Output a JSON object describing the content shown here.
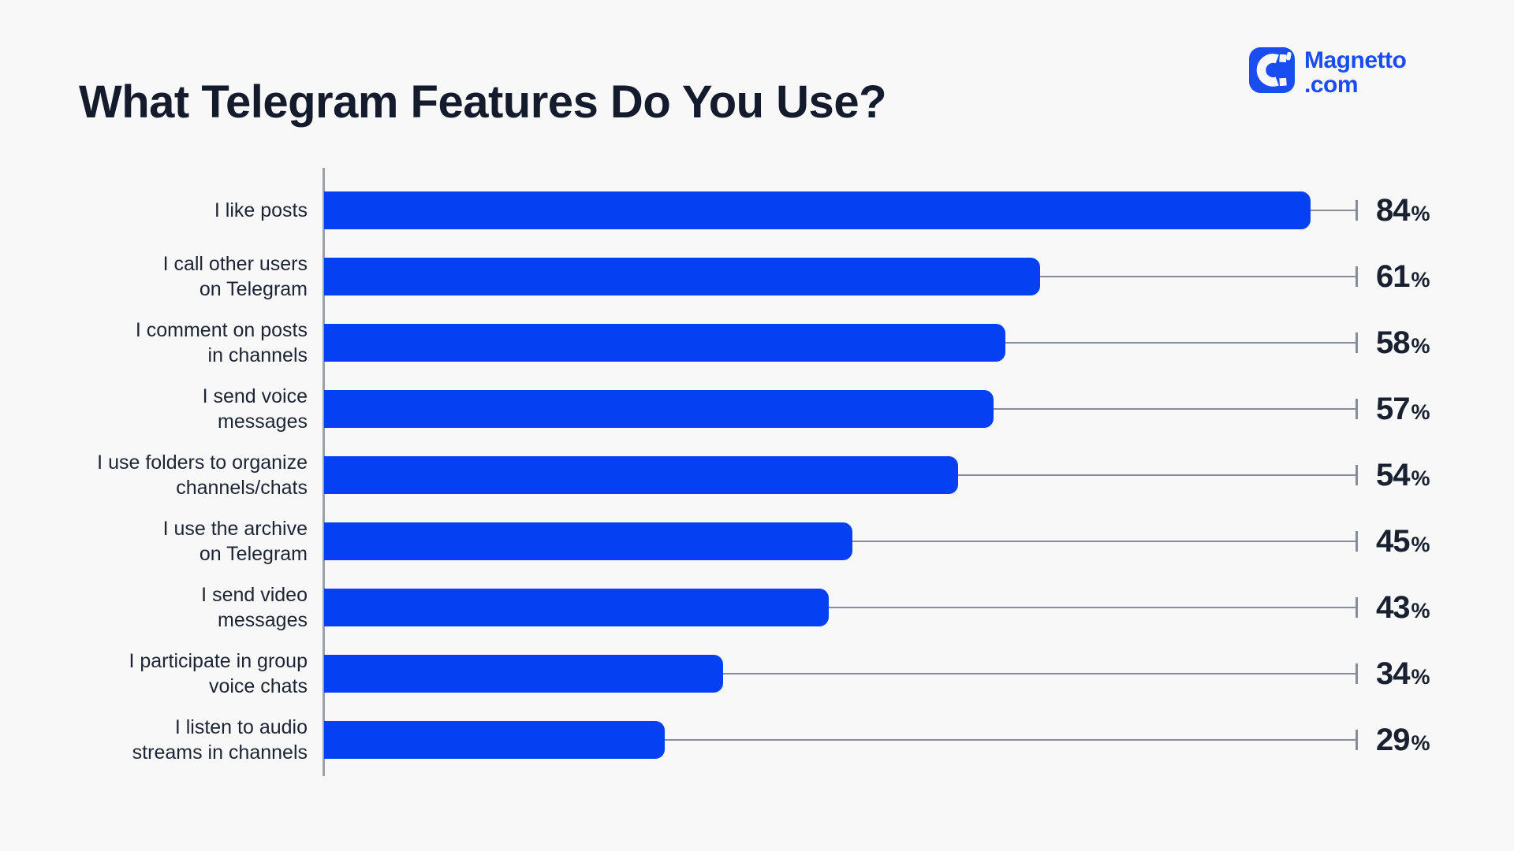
{
  "header": {
    "title": "What Telegram Features Do You Use?",
    "logo": {
      "line1": "Magnetto",
      "line2": ".com",
      "color": "#1a4df0"
    }
  },
  "chart_data": {
    "type": "bar",
    "orientation": "horizontal",
    "title": "What Telegram Features Do You Use?",
    "unit": "%",
    "bar_color": "#0540f2",
    "axis_color": "#9ba1aa",
    "connector_color": "#878d99",
    "text_color": "#1d2433",
    "value_color": "#19202f",
    "background": "#f8f8f9",
    "xlim": [
      0,
      100
    ],
    "grid": false,
    "legend": false,
    "categories": [
      "I like posts",
      "I call other users on Telegram",
      "I comment on posts in channels",
      "I send voice messages",
      "I use folders to organize channels/chats",
      "I use the archive on Telegram",
      "I send video messages",
      "I participate in group voice chats",
      "I listen to audio streams in channels"
    ],
    "values": [
      84,
      61,
      58,
      57,
      54,
      45,
      43,
      34,
      29
    ],
    "rows": [
      {
        "label": "I like posts",
        "value": 84
      },
      {
        "label": "I call other users\non Telegram",
        "value": 61
      },
      {
        "label": "I comment on posts\nin channels",
        "value": 58
      },
      {
        "label": "I send voice\nmessages",
        "value": 57
      },
      {
        "label": "I use folders to organize\nchannels/chats",
        "value": 54
      },
      {
        "label": "I use the archive\non Telegram",
        "value": 45
      },
      {
        "label": "I send video\nmessages",
        "value": 43
      },
      {
        "label": "I participate in group\nvoice chats",
        "value": 34
      },
      {
        "label": "I listen to audio\nstreams in channels",
        "value": 29
      }
    ]
  }
}
